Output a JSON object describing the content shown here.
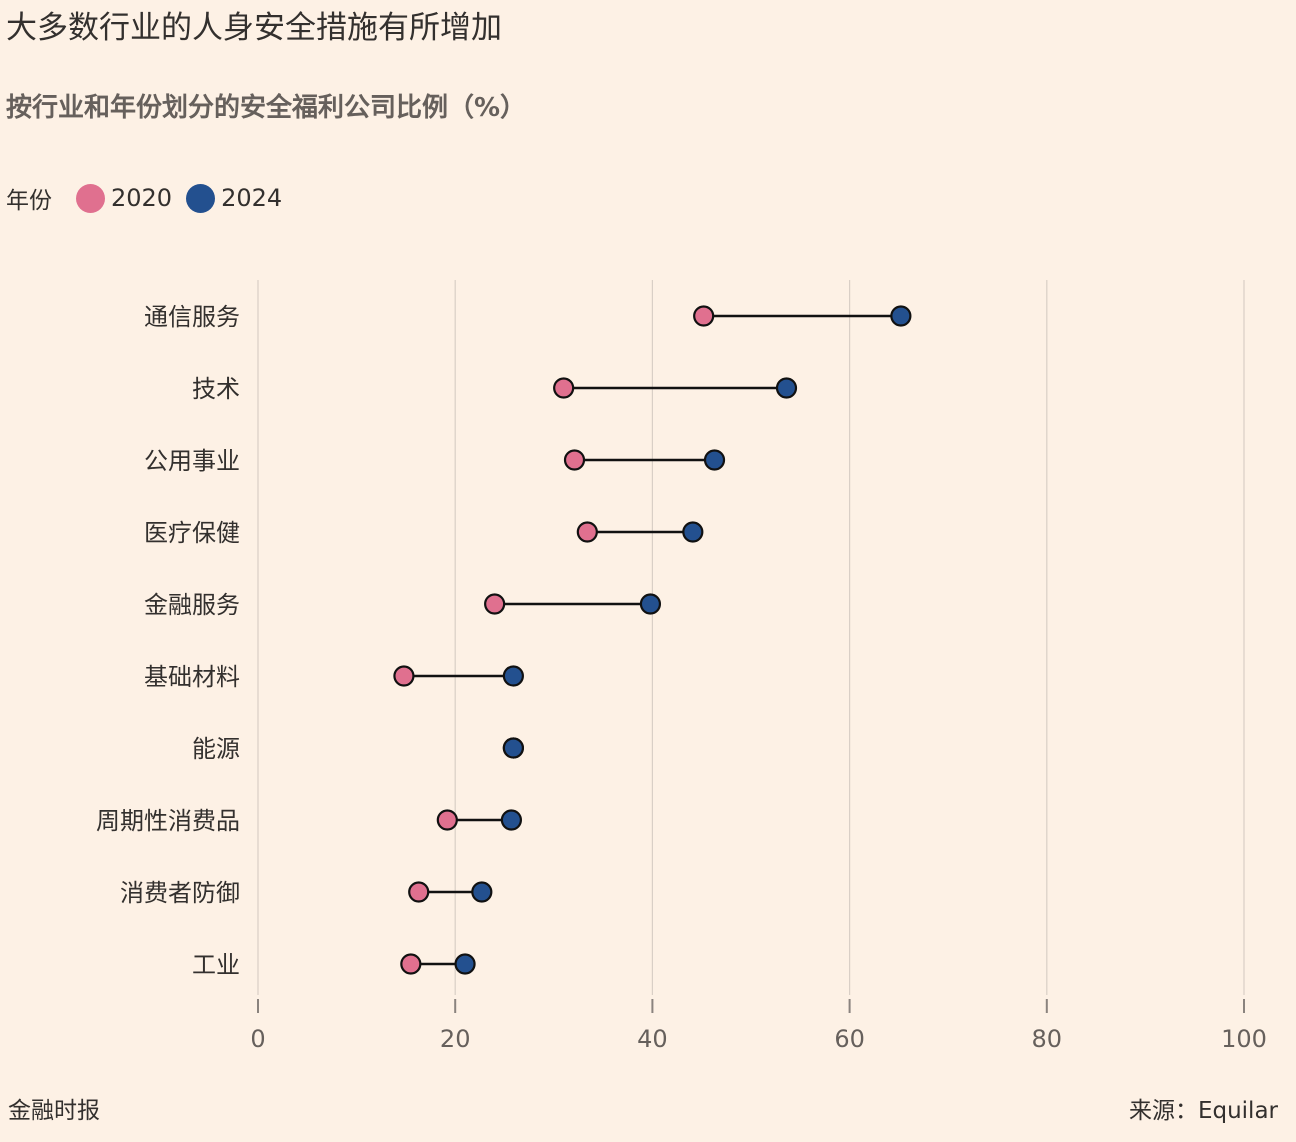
{
  "header": {
    "title": "大多数行业的人身安全措施有所增加",
    "subtitle": "按行业和年份划分的安全福利公司比例（%）"
  },
  "legend": {
    "title": "年份",
    "items": [
      {
        "label": "2020",
        "color": "#e0708f"
      },
      {
        "label": "2024",
        "color": "#23508f"
      }
    ]
  },
  "footer": {
    "publisher": "金融时报",
    "source": "来源：Equilar"
  },
  "chart_data": {
    "type": "dot-plot",
    "title": "大多数行业的人身安全措施有所增加",
    "subtitle": "按行业和年份划分的安全福利公司比例（%）",
    "categories": [
      "通信服务",
      "技术",
      "公用事业",
      "医疗保健",
      "金融服务",
      "基础材料",
      "能源",
      "周期性消费品",
      "消费者防御",
      "工业"
    ],
    "series": [
      {
        "name": "2020",
        "color": "#e0708f",
        "values": [
          45.2,
          31.0,
          32.1,
          33.4,
          24.0,
          14.8,
          25.9,
          19.2,
          16.3,
          15.5
        ]
      },
      {
        "name": "2024",
        "color": "#23508f",
        "values": [
          65.2,
          53.6,
          46.3,
          44.1,
          39.8,
          25.9,
          25.9,
          25.7,
          22.7,
          21.0
        ]
      }
    ],
    "xlim": [
      0,
      100
    ],
    "xticks": [
      0,
      20,
      40,
      60,
      80,
      100
    ],
    "grid": true,
    "legend_position": "top-left"
  }
}
